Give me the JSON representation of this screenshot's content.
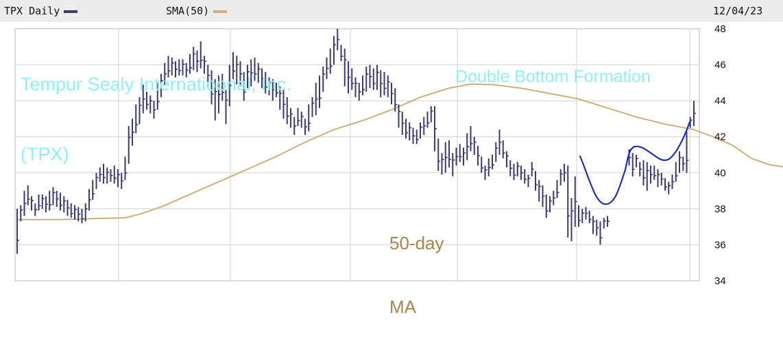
{
  "header": {
    "symbol_label": "TPX Daily",
    "sma_label": "SMA(50)",
    "date": "12/04/23",
    "price_color": "#3b3a6e",
    "sma_color": "#cfae78"
  },
  "annotations": {
    "company": "Tempur Sealy Internatioonal, Inc.",
    "ticker": "(TPX)",
    "pattern": "Double Bottom Formation",
    "ma_line1": "50-day",
    "ma_line2": "MA",
    "company_color": "#8ef0f4",
    "ma_color": "#a68550",
    "pattern_color": "#1f2fb8"
  },
  "chart_data": {
    "type": "line",
    "grid": true,
    "ylim": [
      34,
      48
    ],
    "yticks": [
      "34",
      "36",
      "38",
      "40",
      "42",
      "44",
      "46",
      "48"
    ],
    "y_axis_side": "right",
    "series": [
      {
        "name": "TPX Daily",
        "style": "high-low bars",
        "values": [
          [
            35.5,
            38.0
          ],
          [
            37.3,
            38.2
          ],
          [
            37.6,
            39.0
          ],
          [
            38.2,
            39.3
          ],
          [
            37.9,
            38.7
          ],
          [
            37.6,
            38.3
          ],
          [
            37.9,
            38.8
          ],
          [
            38.0,
            38.8
          ],
          [
            37.8,
            38.7
          ],
          [
            37.9,
            39.0
          ],
          [
            38.2,
            39.2
          ],
          [
            38.1,
            39.0
          ],
          [
            37.9,
            38.9
          ],
          [
            37.8,
            38.7
          ],
          [
            37.6,
            38.5
          ],
          [
            37.5,
            38.3
          ],
          [
            37.4,
            38.2
          ],
          [
            37.3,
            38.1
          ],
          [
            37.2,
            38.0
          ],
          [
            37.3,
            38.3
          ],
          [
            37.9,
            39.1
          ],
          [
            38.5,
            39.6
          ],
          [
            39.1,
            40.0
          ],
          [
            39.5,
            40.3
          ],
          [
            39.4,
            40.5
          ],
          [
            39.4,
            40.3
          ],
          [
            39.5,
            40.2
          ],
          [
            39.4,
            40.4
          ],
          [
            39.2,
            40.2
          ],
          [
            39.1,
            40.0
          ],
          [
            39.6,
            40.9
          ],
          [
            40.5,
            42.6
          ],
          [
            41.5,
            43.0
          ],
          [
            42.2,
            43.8
          ],
          [
            42.7,
            44.2
          ],
          [
            43.3,
            44.9
          ],
          [
            43.5,
            44.5
          ],
          [
            43.3,
            44.3
          ],
          [
            43.0,
            44.0
          ],
          [
            43.5,
            45.0
          ],
          [
            44.2,
            45.5
          ],
          [
            44.9,
            46.1
          ],
          [
            45.3,
            46.5
          ],
          [
            45.4,
            46.4
          ],
          [
            45.3,
            46.2
          ],
          [
            45.4,
            46.3
          ],
          [
            45.4,
            46.3
          ],
          [
            45.3,
            46.1
          ],
          [
            45.5,
            46.6
          ],
          [
            45.7,
            47.0
          ],
          [
            45.6,
            46.8
          ],
          [
            45.8,
            47.3
          ],
          [
            45.5,
            46.5
          ],
          [
            44.8,
            46.0
          ],
          [
            43.8,
            45.7
          ],
          [
            42.9,
            45.2
          ],
          [
            43.3,
            45.4
          ],
          [
            44.0,
            45.5
          ],
          [
            42.7,
            44.6
          ],
          [
            43.7,
            46.0
          ],
          [
            45.2,
            46.7
          ],
          [
            44.9,
            46.5
          ],
          [
            44.8,
            46.2
          ],
          [
            44.0,
            45.6
          ],
          [
            44.7,
            46.0
          ],
          [
            44.8,
            46.3
          ],
          [
            45.1,
            46.4
          ],
          [
            45.0,
            46.1
          ],
          [
            44.7,
            45.8
          ],
          [
            44.4,
            45.6
          ],
          [
            44.3,
            45.3
          ],
          [
            44.0,
            45.2
          ],
          [
            44.2,
            45.0
          ],
          [
            43.5,
            44.8
          ],
          [
            43.0,
            44.6
          ],
          [
            42.7,
            44.2
          ],
          [
            42.5,
            43.6
          ],
          [
            42.1,
            43.1
          ],
          [
            42.6,
            43.6
          ],
          [
            42.5,
            43.4
          ],
          [
            42.1,
            43.0
          ],
          [
            42.3,
            43.8
          ],
          [
            43.1,
            44.2
          ],
          [
            43.2,
            45.0
          ],
          [
            43.6,
            45.4
          ],
          [
            44.5,
            45.9
          ],
          [
            45.2,
            46.4
          ],
          [
            45.5,
            46.9
          ],
          [
            46.0,
            47.6
          ],
          [
            46.8,
            48.0
          ],
          [
            46.2,
            47.1
          ],
          [
            44.8,
            46.9
          ],
          [
            44.4,
            46.2
          ],
          [
            44.6,
            45.8
          ],
          [
            44.2,
            45.3
          ],
          [
            44.0,
            45.0
          ],
          [
            44.3,
            45.4
          ],
          [
            44.5,
            45.9
          ],
          [
            44.7,
            46.0
          ],
          [
            44.6,
            45.8
          ],
          [
            44.6,
            46.0
          ],
          [
            44.2,
            45.7
          ],
          [
            44.3,
            45.6
          ],
          [
            44.2,
            45.4
          ],
          [
            43.8,
            45.0
          ],
          [
            43.4,
            44.7
          ],
          [
            42.5,
            43.8
          ],
          [
            42.1,
            43.4
          ],
          [
            41.9,
            43.0
          ],
          [
            41.8,
            42.8
          ],
          [
            41.6,
            42.5
          ],
          [
            41.6,
            42.4
          ],
          [
            41.9,
            42.8
          ],
          [
            42.1,
            43.1
          ],
          [
            42.5,
            43.4
          ],
          [
            42.8,
            43.7
          ],
          [
            41.2,
            43.7
          ],
          [
            40.1,
            41.9
          ],
          [
            39.9,
            41.1
          ],
          [
            40.0,
            41.7
          ],
          [
            40.3,
            41.8
          ],
          [
            39.8,
            41.1
          ],
          [
            40.4,
            41.4
          ],
          [
            40.6,
            41.6
          ],
          [
            40.4,
            41.4
          ],
          [
            40.7,
            42.2
          ],
          [
            41.2,
            42.6
          ],
          [
            41.0,
            42.0
          ],
          [
            40.4,
            41.5
          ],
          [
            40.0,
            40.9
          ],
          [
            39.6,
            40.4
          ],
          [
            39.8,
            40.8
          ],
          [
            40.2,
            41.0
          ],
          [
            40.6,
            41.7
          ],
          [
            41.0,
            42.4
          ],
          [
            40.8,
            41.8
          ],
          [
            40.3,
            41.2
          ],
          [
            39.8,
            40.7
          ],
          [
            39.6,
            40.5
          ],
          [
            39.8,
            40.6
          ],
          [
            39.6,
            40.4
          ],
          [
            39.4,
            40.2
          ],
          [
            39.2,
            39.9
          ],
          [
            39.8,
            40.6
          ],
          [
            39.0,
            40.1
          ],
          [
            38.4,
            39.6
          ],
          [
            38.1,
            39.3
          ],
          [
            37.5,
            38.8
          ],
          [
            37.8,
            38.7
          ],
          [
            38.2,
            39.0
          ],
          [
            38.6,
            39.6
          ],
          [
            39.3,
            40.2
          ],
          [
            39.5,
            40.5
          ],
          [
            36.4,
            40.4
          ],
          [
            36.2,
            38.6
          ],
          [
            37.0,
            39.8
          ],
          [
            37.0,
            38.2
          ],
          [
            37.2,
            38.0
          ],
          [
            37.4,
            38.1
          ],
          [
            37.2,
            37.9
          ],
          [
            36.6,
            37.6
          ],
          [
            36.5,
            37.4
          ],
          [
            36.0,
            37.3
          ],
          [
            36.9,
            37.5
          ],
          [
            37.0,
            37.6
          ],
          null,
          null,
          null,
          null,
          null,
          [
            40.4,
            41.3
          ],
          [
            39.8,
            41.1
          ],
          [
            40.3,
            41.0
          ],
          [
            39.8,
            40.6
          ],
          [
            39.3,
            40.7
          ],
          [
            39.0,
            40.6
          ],
          [
            39.4,
            40.4
          ],
          [
            39.6,
            40.4
          ],
          [
            39.2,
            40.2
          ],
          [
            39.3,
            40.0
          ],
          [
            39.0,
            39.7
          ],
          [
            38.8,
            39.5
          ],
          [
            39.1,
            39.9
          ],
          [
            39.5,
            40.6
          ],
          [
            40.0,
            41.2
          ],
          [
            40.1,
            40.9
          ],
          [
            40.0,
            42.3
          ],
          [
            42.5,
            43.1
          ],
          [
            42.6,
            44.0
          ]
        ]
      },
      {
        "name": "SMA(50)",
        "values": [
          [
            0,
            37.4
          ],
          [
            12,
            37.4
          ],
          [
            30,
            37.5
          ],
          [
            34,
            37.7
          ],
          [
            40,
            38.1
          ],
          [
            48,
            38.8
          ],
          [
            56,
            39.5
          ],
          [
            64,
            40.2
          ],
          [
            72,
            40.9
          ],
          [
            80,
            41.7
          ],
          [
            88,
            42.4
          ],
          [
            96,
            42.9
          ],
          [
            104,
            43.5
          ],
          [
            112,
            44.2
          ],
          [
            120,
            44.7
          ],
          [
            126,
            44.93
          ],
          [
            132,
            44.9
          ],
          [
            140,
            44.7
          ],
          [
            148,
            44.4
          ],
          [
            156,
            44.1
          ],
          [
            164,
            43.6
          ],
          [
            172,
            43.1
          ],
          [
            180,
            42.7
          ],
          [
            188,
            42.4
          ],
          [
            194,
            41.95
          ],
          [
            199,
            41.5
          ],
          [
            204,
            40.8
          ],
          [
            209,
            40.45
          ],
          [
            214,
            40.3
          ],
          [
            219,
            40.1
          ],
          [
            223,
            40.15
          ]
        ]
      }
    ]
  }
}
